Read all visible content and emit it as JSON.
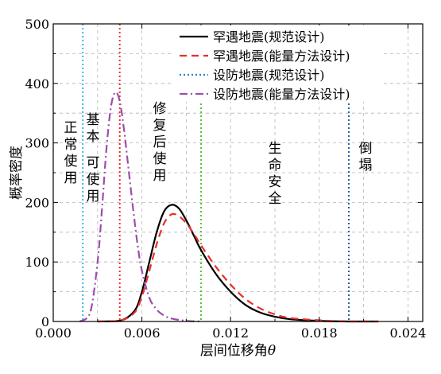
{
  "chart_data": {
    "type": "line",
    "xlabel": "层间位移角θ",
    "ylabel": "概率密度",
    "xlim": [
      0,
      0.025
    ],
    "ylim": [
      0,
      500
    ],
    "x_ticks": [
      "0.000",
      "0.006",
      "0.012",
      "0.018",
      "0.024"
    ],
    "y_ticks": [
      "0",
      "100",
      "200",
      "300",
      "400",
      "500"
    ],
    "grid": true,
    "legend_position": "top-right",
    "series": [
      {
        "name": "罕遇地震(规范设计)",
        "color": "#000000",
        "style": "solid",
        "x": [
          0.003,
          0.0045,
          0.0055,
          0.006,
          0.0065,
          0.007,
          0.0075,
          0.008,
          0.0085,
          0.009,
          0.0095,
          0.01,
          0.011,
          0.012,
          0.013,
          0.014,
          0.015,
          0.016,
          0.018,
          0.02,
          0.022
        ],
        "y": [
          0,
          1,
          18,
          50,
          100,
          150,
          185,
          196,
          190,
          170,
          145,
          120,
          80,
          50,
          28,
          15,
          8,
          4,
          1,
          0,
          0
        ]
      },
      {
        "name": "罕遇地震(能量方法设计)",
        "color": "#e8302a",
        "style": "dashed",
        "x": [
          0.003,
          0.0045,
          0.0055,
          0.006,
          0.0065,
          0.007,
          0.0075,
          0.008,
          0.0085,
          0.009,
          0.0095,
          0.01,
          0.011,
          0.012,
          0.013,
          0.014,
          0.015,
          0.016,
          0.018,
          0.02,
          0.022
        ],
        "y": [
          0,
          1,
          15,
          42,
          85,
          130,
          165,
          180,
          177,
          165,
          148,
          128,
          92,
          62,
          38,
          22,
          12,
          6,
          2,
          0,
          0
        ]
      },
      {
        "name": "设防地震(规范设计)",
        "color": "#2c7fc9",
        "style": "dotted",
        "x": [],
        "y": []
      },
      {
        "name": "设防地震(能量方法设计)",
        "color": "#9b4fa8",
        "style": "dash-dot",
        "x": [
          0.0018,
          0.0025,
          0.003,
          0.0033,
          0.0036,
          0.0039,
          0.0042,
          0.0045,
          0.0048,
          0.0051,
          0.0054,
          0.0057,
          0.006,
          0.0065,
          0.007,
          0.0075,
          0.008,
          0.009,
          0.01
        ],
        "y": [
          0,
          15,
          100,
          190,
          290,
          360,
          385,
          370,
          320,
          255,
          190,
          130,
          85,
          40,
          20,
          10,
          5,
          1,
          0
        ]
      }
    ],
    "thresholds": [
      {
        "x": 0.002,
        "color": "#35b9e6"
      },
      {
        "x": 0.0045,
        "color": "#e8302a"
      },
      {
        "x": 0.01,
        "color": "#5cc13f"
      },
      {
        "x": 0.02,
        "color": "#2c5fa8"
      }
    ],
    "zones": [
      {
        "label": "正常使用",
        "columns": [
          [
            "正",
            "常",
            "使",
            "用"
          ]
        ]
      },
      {
        "label": "基本可使用",
        "columns": [
          [
            "基",
            "本"
          ],
          [
            "可",
            "使",
            "用"
          ]
        ]
      },
      {
        "label": "修复后使用",
        "columns": [
          [
            "修",
            "复",
            "后",
            "使",
            "用"
          ]
        ]
      },
      {
        "label": "生命安全",
        "columns": [
          [
            "生",
            "命",
            "安",
            "全"
          ]
        ]
      },
      {
        "label": "倒塌",
        "columns": [
          [
            "倒",
            "塌"
          ]
        ]
      }
    ]
  }
}
